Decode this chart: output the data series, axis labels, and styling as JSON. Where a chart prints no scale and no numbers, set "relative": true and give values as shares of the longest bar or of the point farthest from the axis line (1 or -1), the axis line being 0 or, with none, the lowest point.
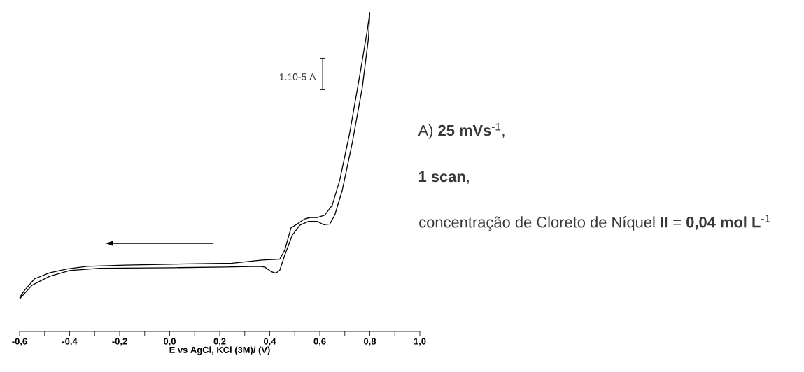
{
  "chart_data": {
    "type": "line",
    "relative": true,
    "tick_labels": "x",
    "xlabel": "E  vs AgCl, KCl (3M)/ (V)",
    "xlim": [
      -0.6,
      1.0
    ],
    "xticks": [
      {
        "value": -0.6,
        "label": "-0,6"
      },
      {
        "value": -0.5,
        "label": null
      },
      {
        "value": -0.4,
        "label": "-0,4"
      },
      {
        "value": -0.3,
        "label": null
      },
      {
        "value": -0.2,
        "label": "-0,2"
      },
      {
        "value": -0.1,
        "label": null
      },
      {
        "value": 0.0,
        "label": "0,0"
      },
      {
        "value": 0.1,
        "label": null
      },
      {
        "value": 0.2,
        "label": "0,2"
      },
      {
        "value": 0.3,
        "label": null
      },
      {
        "value": 0.4,
        "label": "0,4"
      },
      {
        "value": 0.5,
        "label": null
      },
      {
        "value": 0.6,
        "label": "0,6"
      },
      {
        "value": 0.7,
        "label": null
      },
      {
        "value": 0.8,
        "label": "0,8"
      },
      {
        "value": 0.9,
        "label": null
      },
      {
        "value": 1.0,
        "label": "1,0"
      }
    ],
    "series": [
      {
        "color": "#000000",
        "x": [
          -0.6,
          -0.58,
          -0.54,
          -0.48,
          -0.41,
          -0.33,
          -0.18,
          0.07,
          0.25,
          0.37,
          0.44,
          0.46,
          0.485,
          0.51,
          0.54,
          0.565,
          0.59,
          0.62,
          0.65,
          0.68,
          0.72,
          0.76,
          0.79,
          0.8,
          0.795,
          0.77,
          0.73,
          0.69,
          0.66,
          0.64,
          0.615,
          0.59,
          0.555,
          0.52,
          0.49,
          0.46,
          0.44,
          0.425,
          0.405,
          0.38,
          0.36,
          0.22,
          0.02,
          -0.28,
          -0.4,
          -0.48,
          -0.55,
          -0.6
        ],
        "values": [
          0.106,
          0.129,
          0.165,
          0.184,
          0.196,
          0.204,
          0.208,
          0.212,
          0.214,
          0.224,
          0.227,
          0.255,
          0.325,
          0.337,
          0.353,
          0.358,
          0.357,
          0.365,
          0.396,
          0.475,
          0.624,
          0.804,
          0.945,
          1.0,
          0.922,
          0.765,
          0.592,
          0.443,
          0.365,
          0.337,
          0.335,
          0.345,
          0.345,
          0.333,
          0.302,
          0.239,
          0.192,
          0.183,
          0.188,
          0.202,
          0.204,
          0.202,
          0.2,
          0.198,
          0.191,
          0.173,
          0.145,
          0.102
        ]
      }
    ],
    "annotations": [
      "1.10-5 A",
      "A) **25 mVs**$^{-1}$,",
      "**1 scan**,",
      "concentração de Cloreto de Níquel II = **0,04 mol L**$^{-1}$"
    ]
  }
}
